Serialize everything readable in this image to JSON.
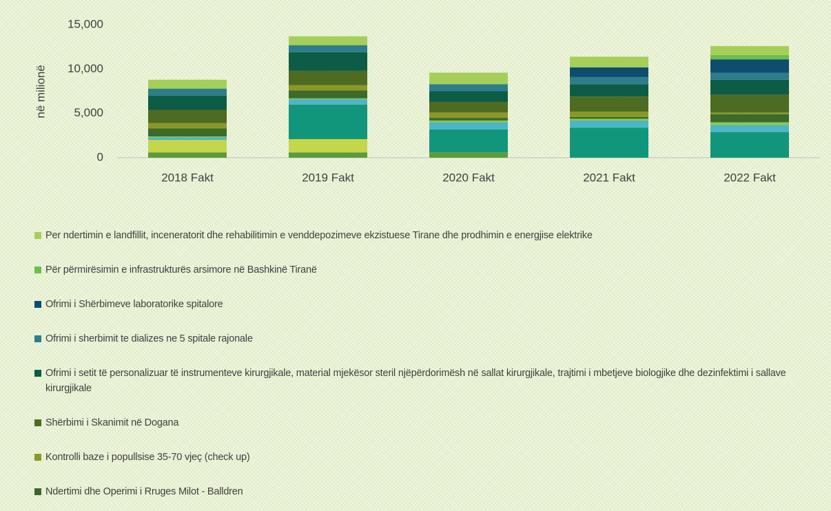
{
  "chart_data": {
    "type": "stacked_bar",
    "y_label": "në milionë",
    "categories": [
      "2018 Fakt",
      "2019 Fakt",
      "2020 Fakt",
      "2021 Fakt",
      "2022 Fakt"
    ],
    "ylim": [
      0,
      15000
    ],
    "yticks": [
      {
        "value": 0,
        "label": "0"
      },
      {
        "value": 5000,
        "label": "5,000"
      },
      {
        "value": 10000,
        "label": "10,000"
      },
      {
        "value": 15000,
        "label": "15,000"
      }
    ],
    "series": [
      {
        "color": "#5b9b3c",
        "values": [
          600,
          600,
          600,
          0,
          0
        ]
      },
      {
        "color": "#c5d64a",
        "values": [
          1400,
          1500,
          0,
          0,
          0
        ]
      },
      {
        "color": "#11967b",
        "values": [
          0,
          3900,
          2600,
          3400,
          2900
        ]
      },
      {
        "color": "#4db6c6",
        "values": [
          300,
          600,
          800,
          800,
          800
        ]
      },
      {
        "color": "#8cc84b",
        "values": [
          100,
          100,
          200,
          200,
          300
        ]
      },
      {
        "name": "Ndertimi dhe Operimi i Rruges Milot - Balldren",
        "color": "#3b6a2a",
        "values": [
          900,
          900,
          300,
          200,
          900
        ]
      },
      {
        "name": "Kontrolli baze i popullsise 35-70 vjeç (check up)",
        "color": "#8a9826",
        "values": [
          600,
          600,
          600,
          600,
          200
        ]
      },
      {
        "name": "Shërbimi i Skanimit në Dogana",
        "color": "#4e6b22",
        "values": [
          1500,
          1600,
          1200,
          1700,
          2000
        ]
      },
      {
        "name": "Ofrimi i setit të personalizuar të instrumenteve kirurgjikale, material mjekësor steril njëpërdorimësh në sallat kirurgjikale, trajtimi i mbetjeve biologjike dhe dezinfektimi i sallave kirurgjikale",
        "color": "#0d5c45",
        "values": [
          1600,
          2100,
          1200,
          1400,
          1700
        ]
      },
      {
        "name": "Ofrimi i sherbimit te dializes ne 5 spitale rajonale",
        "color": "#2e7d8a",
        "values": [
          800,
          800,
          800,
          800,
          800
        ]
      },
      {
        "name": "Ofrimi i Shërbimeve laboratorike spitalore",
        "color": "#0e4d6e",
        "values": [
          0,
          0,
          0,
          1100,
          1500
        ]
      },
      {
        "name": "Për përmirësimin e infrastrukturës arsimore në Bashkinë Tiranë",
        "color": "#6cbf4a",
        "values": [
          0,
          0,
          0,
          0,
          500
        ]
      },
      {
        "name": "Per ndertimin e landfillit, inceneratorit dhe rehabilitimin e venddepozimeve ekzistuese Tirane dhe prodhimin e energjise elektrike",
        "color": "#a5cf59",
        "values": [
          1000,
          1000,
          1300,
          1200,
          1000
        ]
      }
    ]
  }
}
